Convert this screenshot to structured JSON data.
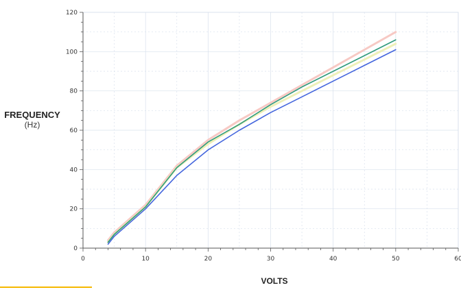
{
  "chart_data": {
    "type": "line",
    "title": "",
    "ylabel": "FREQUENCY",
    "ylabel_unit": "(Hz)",
    "xlabel": "VOLTS",
    "xlim": [
      0,
      60
    ],
    "ylim": [
      0,
      120
    ],
    "xticks": [
      0,
      10,
      20,
      30,
      40,
      50,
      60
    ],
    "yticks": [
      0,
      20,
      40,
      60,
      80,
      100,
      120
    ],
    "grid": true,
    "series": [
      {
        "color": "#f7c9c4",
        "points": [
          [
            4,
            4
          ],
          [
            5,
            8
          ],
          [
            10,
            22
          ],
          [
            15,
            42
          ],
          [
            20,
            55
          ],
          [
            25,
            65
          ],
          [
            30,
            74
          ],
          [
            35,
            83
          ],
          [
            40,
            92
          ],
          [
            45,
            101
          ],
          [
            50,
            110
          ]
        ]
      },
      {
        "color": "#eef0b8",
        "points": [
          [
            4,
            3
          ],
          [
            5,
            7
          ],
          [
            10,
            21
          ],
          [
            15,
            41
          ],
          [
            20,
            53
          ],
          [
            25,
            63
          ],
          [
            30,
            72
          ],
          [
            35,
            80
          ],
          [
            40,
            88
          ],
          [
            45,
            96
          ],
          [
            50,
            104
          ]
        ]
      },
      {
        "color": "#2f9a7c",
        "points": [
          [
            4,
            3
          ],
          [
            5,
            7
          ],
          [
            10,
            21
          ],
          [
            15,
            41
          ],
          [
            20,
            54
          ],
          [
            25,
            63
          ],
          [
            30,
            73
          ],
          [
            35,
            82
          ],
          [
            40,
            90
          ],
          [
            45,
            98
          ],
          [
            50,
            106
          ]
        ]
      },
      {
        "color": "#4466dd",
        "points": [
          [
            4,
            2
          ],
          [
            5,
            6
          ],
          [
            10,
            20
          ],
          [
            15,
            37
          ],
          [
            20,
            50
          ],
          [
            25,
            60
          ],
          [
            30,
            69
          ],
          [
            35,
            77
          ],
          [
            40,
            85
          ],
          [
            45,
            93
          ],
          [
            50,
            101
          ]
        ]
      }
    ]
  },
  "colors": {
    "accent_rule": "#f5b800",
    "grid": "#d8e0ec",
    "axis": "#555555"
  }
}
